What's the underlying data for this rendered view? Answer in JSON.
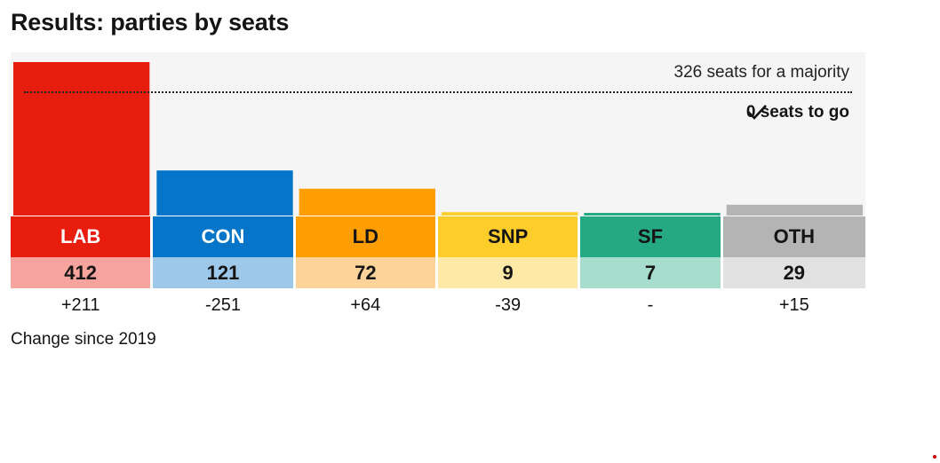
{
  "title": "Results: parties by seats",
  "majority": {
    "label": "326 seats for a majority",
    "value": 326,
    "status": "0 seats to go",
    "status_icon": "check-icon"
  },
  "footnote": "Change since 2019",
  "chart_data": {
    "type": "bar",
    "title": "Results: parties by seats",
    "categories": [
      "LAB",
      "CON",
      "LD",
      "SNP",
      "SF",
      "OTH"
    ],
    "values": [
      412,
      121,
      72,
      9,
      7,
      29
    ],
    "changes": [
      "+211",
      "-251",
      "+64",
      "-39",
      "-",
      "+15"
    ],
    "seat_labels": [
      "412",
      "121",
      "72",
      "9",
      "7",
      "29"
    ],
    "colors": [
      "#e91d0e",
      "#0575c9",
      "#fe9e03",
      "#ffcd2a",
      "#25a884",
      "#b4b4b4"
    ],
    "light_colors": [
      "#f7a49e",
      "#9ec8ea",
      "#fed39a",
      "#ffe9a6",
      "#a7ddcd",
      "#e1e1e1"
    ],
    "label_text_colors": [
      "#ffffff",
      "#ffffff",
      "#141414",
      "#141414",
      "#141414",
      "#141414"
    ],
    "reference_line": 326,
    "xlabel": "",
    "ylabel": ""
  }
}
